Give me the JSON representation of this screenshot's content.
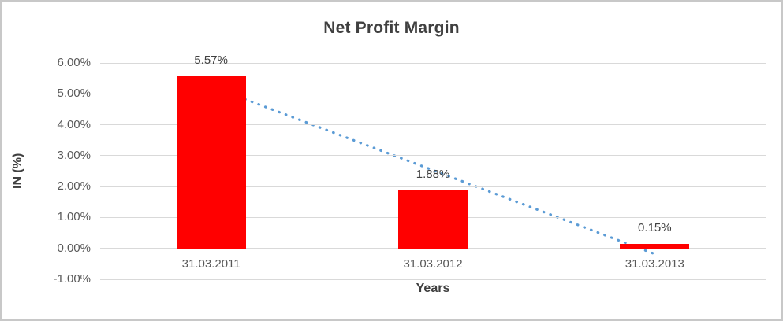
{
  "chart_data": {
    "type": "bar",
    "title": "Net Profit Margin",
    "xlabel": "Years",
    "ylabel": "IN (%)",
    "categories": [
      "31.03.2011",
      "31.03.2012",
      "31.03.2013"
    ],
    "values": [
      5.57,
      1.88,
      0.15
    ],
    "data_labels": [
      "5.57%",
      "1.88%",
      "0.15%"
    ],
    "ylim": [
      -1,
      6
    ],
    "y_ticks": [
      {
        "value": 6,
        "label": "6.00%"
      },
      {
        "value": 5,
        "label": "5.00%"
      },
      {
        "value": 4,
        "label": "4.00%"
      },
      {
        "value": 3,
        "label": "3.00%"
      },
      {
        "value": 2,
        "label": "2.00%"
      },
      {
        "value": 1,
        "label": "1.00%"
      },
      {
        "value": 0,
        "label": "0.00%"
      },
      {
        "value": -1,
        "label": "-1.00%"
      }
    ],
    "grid": true,
    "legend": "none",
    "bar_color": "#ff0000",
    "gridline_color": "#d9d9d9",
    "trendline": {
      "type": "linear",
      "style": "dotted",
      "color": "#5b9bd5",
      "start_value": 5.24,
      "end_value": -0.18
    }
  }
}
